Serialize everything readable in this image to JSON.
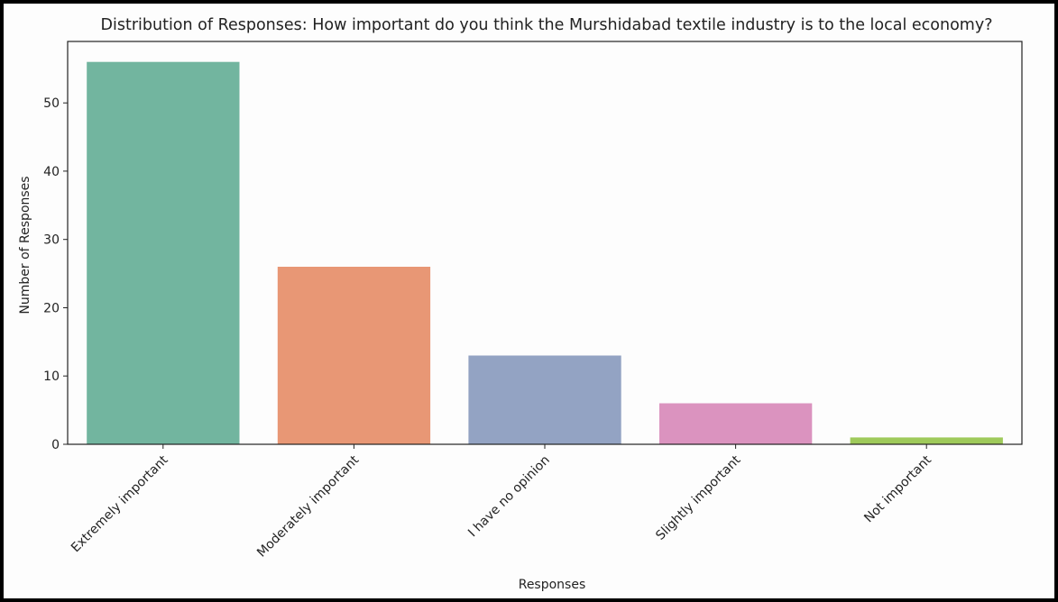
{
  "chart_data": {
    "type": "bar",
    "title": "Distribution of Responses: How important do you think the Murshidabad textile industry is to the local economy?",
    "xlabel": "Responses",
    "ylabel": "Number of Responses",
    "categories": [
      "Extremely important",
      "Moderately important",
      "I have no opinion",
      "Slightly important",
      "Not important"
    ],
    "values": [
      56,
      26,
      13,
      6,
      1
    ],
    "colors": [
      "#72b59f",
      "#e89775",
      "#93a3c3",
      "#db93bf",
      "#9fca5b"
    ],
    "ylim": [
      0,
      59
    ],
    "yticks": [
      0,
      10,
      20,
      30,
      40,
      50
    ],
    "grid": false,
    "legend": "none"
  }
}
